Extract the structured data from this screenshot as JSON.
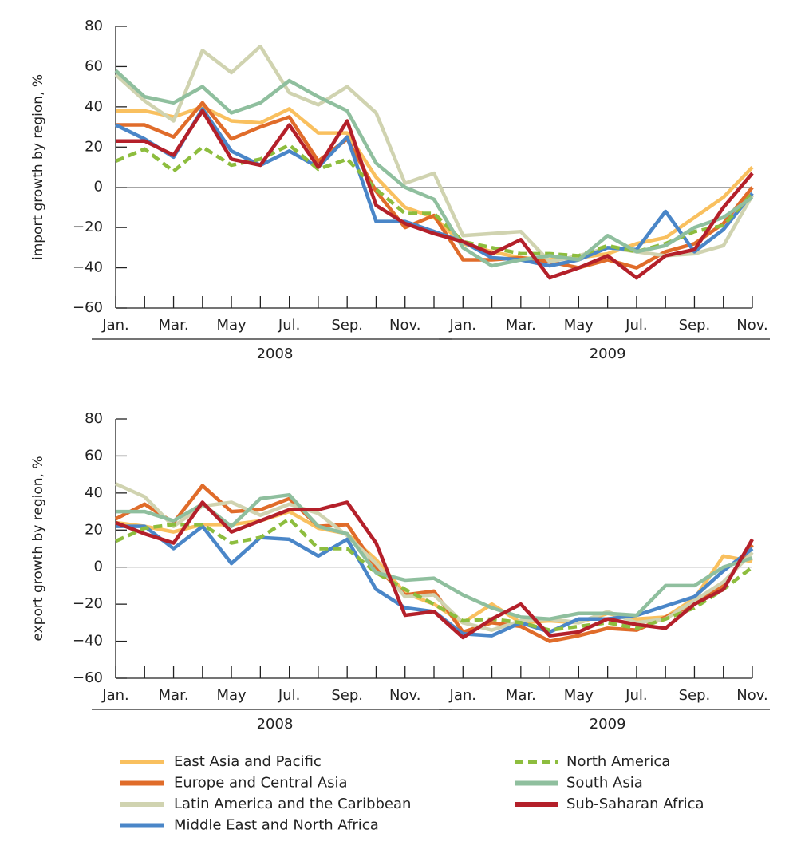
{
  "chart_data": [
    {
      "type": "line",
      "ylabel": "import growth by region, %",
      "categories": [
        "Jan.",
        null,
        "Mar.",
        null,
        "May",
        null,
        "Jul.",
        null,
        "Sep.",
        null,
        "Nov.",
        null,
        "Jan.",
        null,
        "Mar.",
        null,
        "May",
        null,
        "Jul.",
        null,
        "Sep.",
        null,
        "Nov."
      ],
      "years": [
        "2008",
        "2009"
      ],
      "ylim": [
        -60,
        80
      ],
      "yticks": [
        {
          "value": -60,
          "label": "−60"
        },
        {
          "value": -40,
          "label": "−40"
        },
        {
          "value": -20,
          "label": "−20"
        },
        0,
        20,
        40,
        60,
        80
      ],
      "series": [
        {
          "name": "East Asia and Pacific",
          "color": "#f9c05f",
          "values": [
            38,
            38,
            35,
            40,
            33,
            32,
            39,
            27,
            27,
            5,
            -10,
            -15,
            -28,
            -32,
            -35,
            -36,
            -35,
            -33,
            -28,
            -25,
            -15,
            -5,
            10
          ]
        },
        {
          "name": "Europe and Central Asia",
          "color": "#e06c2a",
          "values": [
            31,
            31,
            25,
            42,
            24,
            30,
            35,
            13,
            24,
            -2,
            -20,
            -14,
            -36,
            -36,
            -35,
            -37,
            -40,
            -36,
            -40,
            -32,
            -28,
            -18,
            0
          ]
        },
        {
          "name": "Latin America and the Caribbean",
          "color": "#d0d3b0",
          "values": [
            56,
            43,
            33,
            68,
            57,
            70,
            47,
            41,
            50,
            37,
            2,
            7,
            -24,
            -23,
            -22,
            -37,
            -34,
            -30,
            -32,
            -34,
            -33,
            -29,
            -4
          ]
        },
        {
          "name": "Middle East and North Africa",
          "color": "#4a86c8",
          "values": [
            31,
            24,
            15,
            39,
            18,
            11,
            18,
            10,
            25,
            -17,
            -17,
            -22,
            -27,
            -35,
            -36,
            -39,
            -36,
            -30,
            -31,
            -12,
            -32,
            -21,
            -3
          ]
        },
        {
          "name": "North America",
          "color": "#8dbd3e",
          "dashed": true,
          "values": [
            13,
            19,
            8,
            20,
            11,
            14,
            21,
            9,
            14,
            -1,
            -13,
            -13,
            -27,
            -30,
            -33,
            -33,
            -34,
            -29,
            -32,
            -28,
            -22,
            -19,
            -3
          ]
        },
        {
          "name": "South Asia",
          "color": "#8fbf9e",
          "values": [
            58,
            45,
            42,
            50,
            37,
            42,
            53,
            45,
            38,
            12,
            0,
            -6,
            -30,
            -39,
            -36,
            -34,
            -36,
            -24,
            -32,
            -29,
            -20,
            -15,
            -5
          ]
        },
        {
          "name": "Sub-Saharan Africa",
          "color": "#b4202a",
          "values": [
            23,
            23,
            16,
            38,
            14,
            11,
            31,
            10,
            33,
            -9,
            -18,
            -23,
            -27,
            -33,
            -26,
            -45,
            -40,
            -34,
            -45,
            -34,
            -31,
            -10,
            7
          ]
        }
      ]
    },
    {
      "type": "line",
      "ylabel": "export growth by region, %",
      "categories": [
        "Jan.",
        null,
        "Mar.",
        null,
        "May",
        null,
        "Jul.",
        null,
        "Sep.",
        null,
        "Nov.",
        null,
        "Jan.",
        null,
        "Mar.",
        null,
        "May",
        null,
        "Jul.",
        null,
        "Sep.",
        null,
        "Nov."
      ],
      "years": [
        "2008",
        "2009"
      ],
      "ylim": [
        -60,
        80
      ],
      "yticks": [
        {
          "value": -60,
          "label": "−60"
        },
        {
          "value": -40,
          "label": "−40"
        },
        {
          "value": -20,
          "label": "−20"
        },
        0,
        20,
        40,
        60,
        80
      ],
      "series": [
        {
          "color": "#f9c05f",
          "values": [
            24,
            22,
            19,
            23,
            23,
            25,
            30,
            21,
            18,
            4,
            -14,
            -20,
            -30,
            -20,
            -30,
            -29,
            -30,
            -25,
            -28,
            -27,
            -17,
            6,
            3
          ]
        },
        {
          "color": "#e06c2a",
          "values": [
            26,
            34,
            24,
            44,
            30,
            31,
            37,
            22,
            23,
            0,
            -15,
            -13,
            -35,
            -30,
            -32,
            -40,
            -37,
            -33,
            -34,
            -27,
            -20,
            -10,
            12
          ]
        },
        {
          "color": "#d0d3b0",
          "values": [
            45,
            38,
            22,
            33,
            35,
            28,
            34,
            29,
            17,
            2,
            -16,
            -15,
            -30,
            -34,
            -29,
            -28,
            -30,
            -24,
            -30,
            -28,
            -18,
            -8,
            8
          ]
        },
        {
          "color": "#4a86c8",
          "values": [
            22,
            22,
            10,
            22,
            2,
            16,
            15,
            6,
            15,
            -12,
            -22,
            -24,
            -36,
            -37,
            -30,
            -35,
            -28,
            -28,
            -26,
            -21,
            -16,
            -2,
            10
          ]
        },
        {
          "color": "#8dbd3e",
          "dashed": true,
          "values": [
            14,
            21,
            23,
            23,
            13,
            16,
            26,
            10,
            10,
            -3,
            -12,
            -20,
            -29,
            -28,
            -30,
            -34,
            -32,
            -30,
            -33,
            -28,
            -22,
            -12,
            0
          ]
        },
        {
          "color": "#8fbf9e",
          "values": [
            30,
            30,
            25,
            34,
            22,
            37,
            39,
            22,
            18,
            -3,
            -7,
            -6,
            -15,
            -22,
            -27,
            -28,
            -25,
            -25,
            -26,
            -10,
            -10,
            0,
            5
          ]
        },
        {
          "color": "#b4202a",
          "values": [
            24,
            18,
            13,
            35,
            19,
            25,
            31,
            31,
            35,
            13,
            -26,
            -24,
            -38,
            -28,
            -20,
            -37,
            -35,
            -28,
            -31,
            -33,
            -20,
            -12,
            15
          ]
        }
      ]
    }
  ]
}
